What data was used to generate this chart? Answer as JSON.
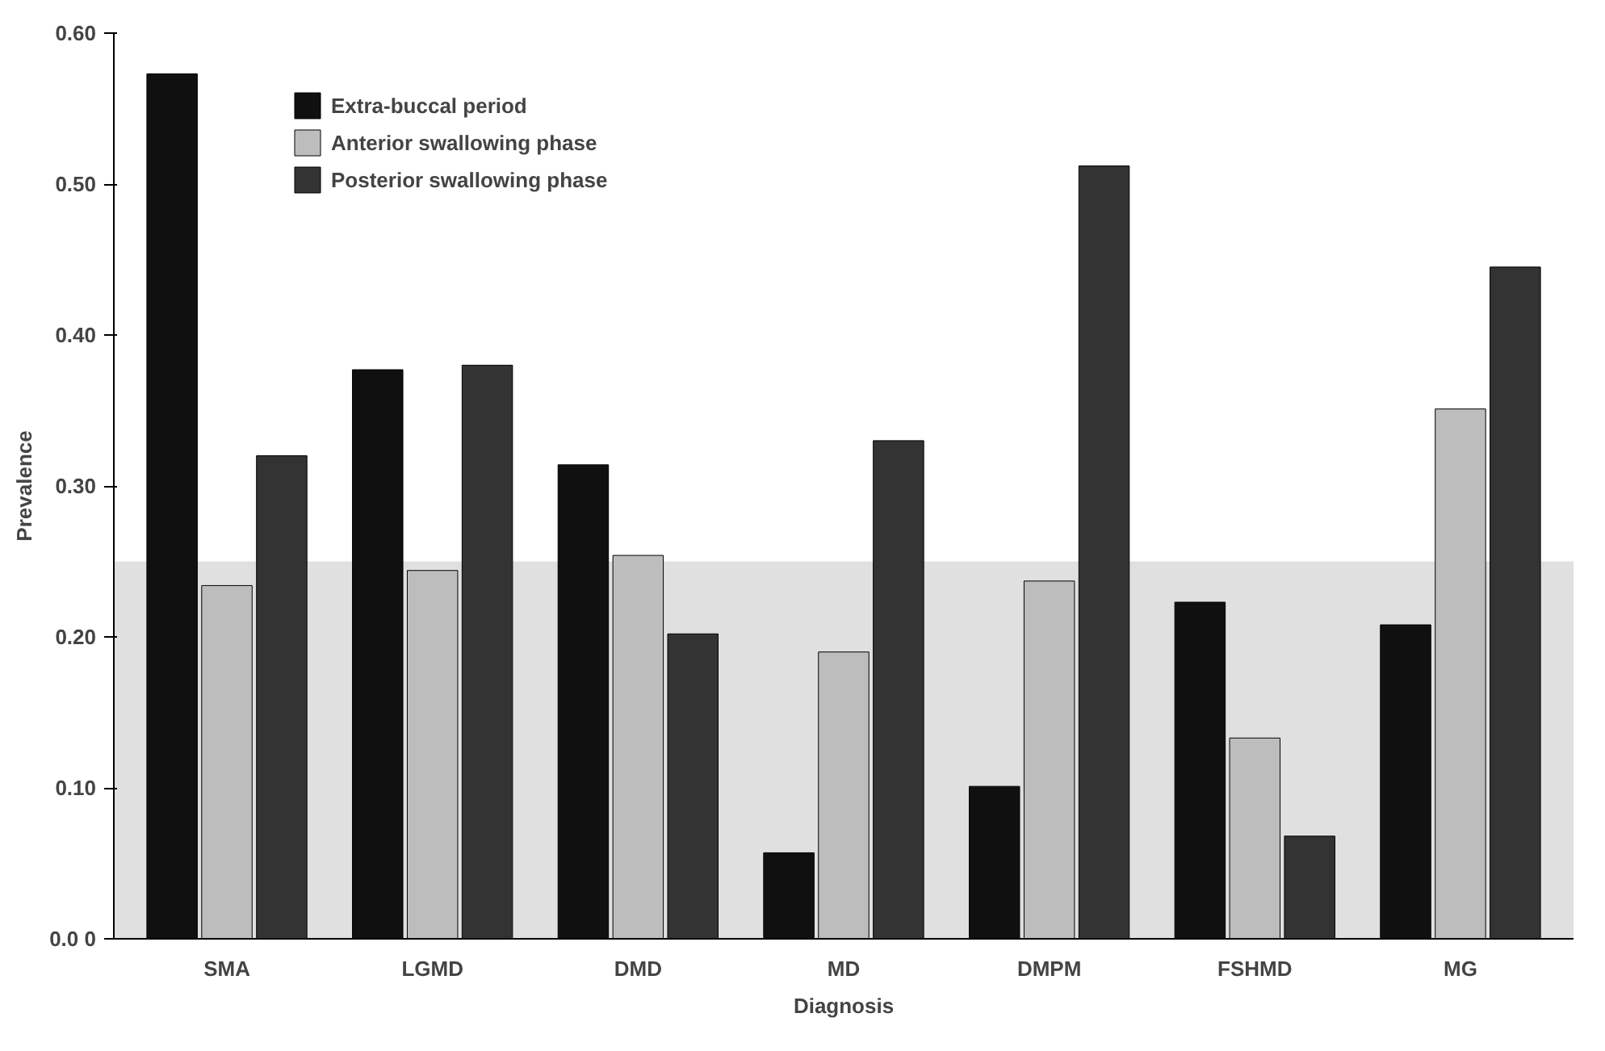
{
  "chart_data": {
    "type": "bar",
    "xlabel": "Diagnosis",
    "ylabel": "Prevalence",
    "categories": [
      "SMA",
      "LGMD",
      "DMD",
      "MD",
      "DMPM",
      "FSHMD",
      "MG"
    ],
    "series": [
      {
        "name": "Extra-buccal period",
        "color": "#101010",
        "values": [
          0.573,
          0.377,
          0.314,
          0.057,
          0.101,
          0.223,
          0.208
        ]
      },
      {
        "name": "Anterior swallowing phase",
        "color": "#bdbdbd",
        "values": [
          0.234,
          0.244,
          0.254,
          0.19,
          0.237,
          0.133,
          0.351
        ]
      },
      {
        "name": "Posterior swallowing phase",
        "color": "#333333",
        "values": [
          0.32,
          0.38,
          0.202,
          0.33,
          0.512,
          0.068,
          0.445
        ]
      }
    ],
    "ylim": [
      0,
      0.6
    ],
    "yticks": [
      {
        "value": 0,
        "label": "0.0 0"
      },
      {
        "value": 0.1,
        "label": "0.10"
      },
      {
        "value": 0.2,
        "label": "0.20"
      },
      {
        "value": 0.3,
        "label": "0.30"
      },
      {
        "value": 0.4,
        "label": "0.40"
      },
      {
        "value": 0.5,
        "label": "0.50"
      },
      {
        "value": 0.6,
        "label": "0.60"
      }
    ],
    "bands": [
      {
        "axis": "y",
        "from": 0,
        "to": 0.25,
        "color": "#e0e0e0"
      }
    ],
    "legend": "top left",
    "grid": false
  }
}
